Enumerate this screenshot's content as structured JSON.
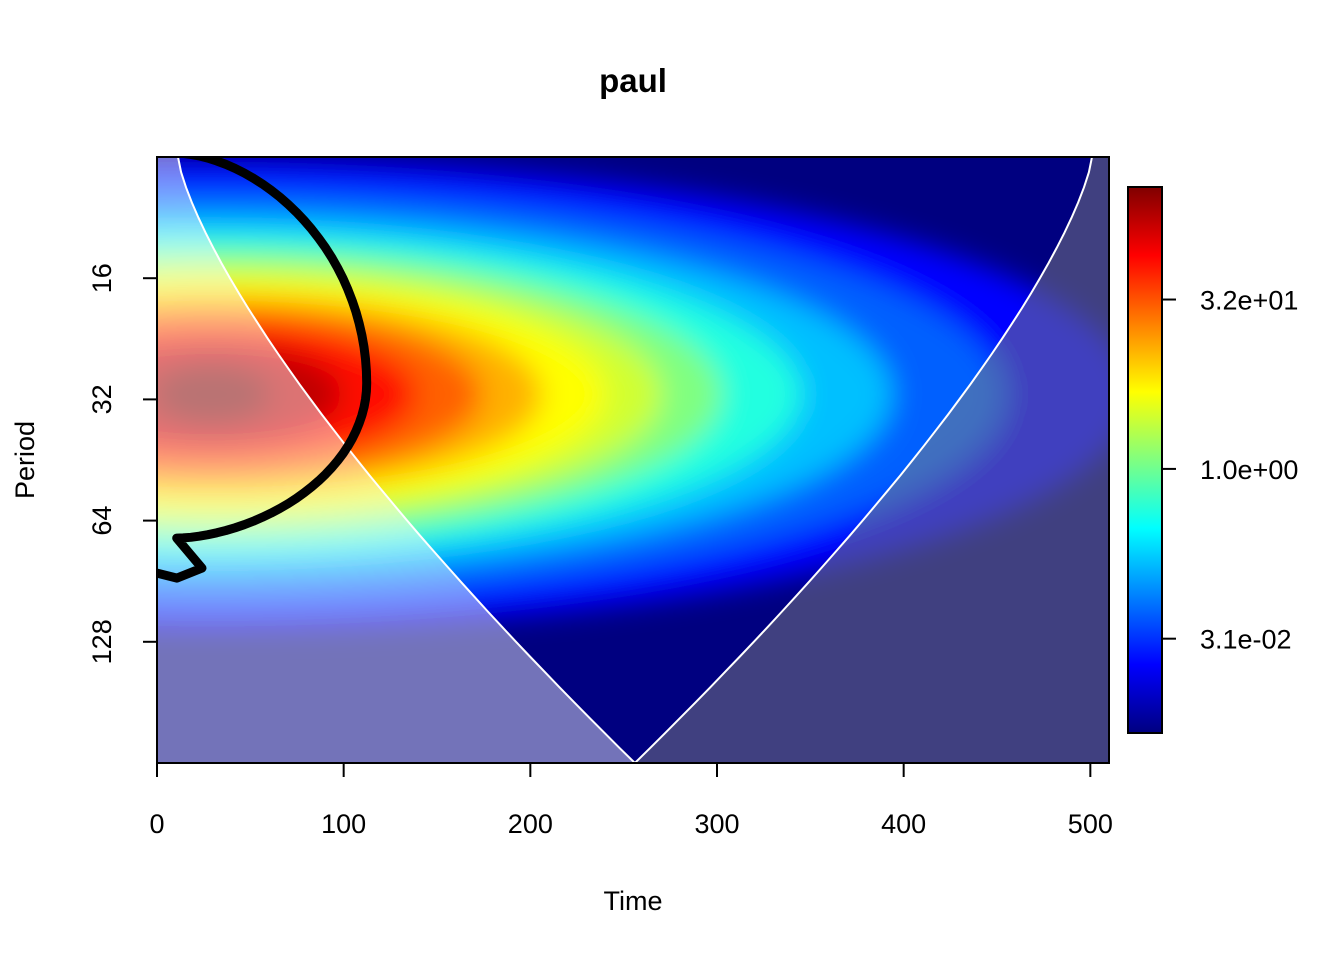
{
  "chart_data": {
    "type": "heatmap",
    "title": "paul",
    "xlabel": "Time",
    "ylabel": "Period",
    "xlim": [
      0,
      510
    ],
    "ylim": [
      8,
      256
    ],
    "y_scale": "log2",
    "y_reversed": true,
    "x_ticks": [
      {
        "value": 0,
        "label": "0"
      },
      {
        "value": 100,
        "label": "100"
      },
      {
        "value": 200,
        "label": "200"
      },
      {
        "value": 300,
        "label": "300"
      },
      {
        "value": 400,
        "label": "400"
      },
      {
        "value": 500,
        "label": "500"
      }
    ],
    "y_ticks": [
      {
        "value": 16,
        "label": "16"
      },
      {
        "value": 32,
        "label": "32"
      },
      {
        "value": 64,
        "label": "64"
      },
      {
        "value": 128,
        "label": "128"
      }
    ],
    "colorbar": {
      "scale": "log",
      "colors": [
        "#000080",
        "#0000ff",
        "#0080ff",
        "#00ffff",
        "#80ff80",
        "#ffff00",
        "#ff8000",
        "#ff0000",
        "#800000"
      ],
      "ticks": [
        {
          "value": 0.031,
          "label": "3.1e-02"
        },
        {
          "value": 1.0,
          "label": "1.0e+00"
        },
        {
          "value": 32,
          "label": "3.2e+01"
        }
      ]
    },
    "power_peak": {
      "time": 40,
      "period": 30
    },
    "significance_contour": {
      "level": 0.95,
      "color": "#000000"
    },
    "cone_of_influence": {
      "color": "#ffffff",
      "apex_time": 256,
      "shade_color": "#808080"
    }
  }
}
